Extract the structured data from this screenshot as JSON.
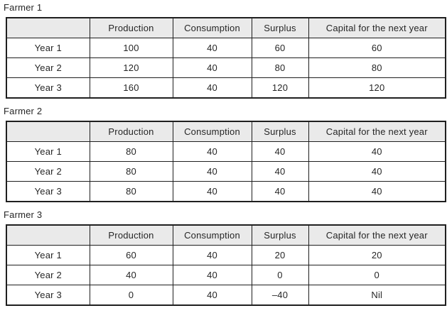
{
  "page": {
    "background": "#ffffff",
    "text_color": "#262626",
    "border_color": "#1f1f1f",
    "header_background": "#eaeaea"
  },
  "tables": [
    {
      "label": "Farmer 1",
      "columns": [
        "",
        "Production",
        "Consumption",
        "Surplus",
        "Capital for the next year"
      ],
      "rows": [
        [
          "Year 1",
          "100",
          "40",
          "60",
          "60"
        ],
        [
          "Year 2",
          "120",
          "40",
          "80",
          "80"
        ],
        [
          "Year 3",
          "160",
          "40",
          "120",
          "120"
        ]
      ]
    },
    {
      "label": "Farmer 2",
      "columns": [
        "",
        "Production",
        "Consumption",
        "Surplus",
        "Capital for the next year"
      ],
      "rows": [
        [
          "Year 1",
          "80",
          "40",
          "40",
          "40"
        ],
        [
          "Year 2",
          "80",
          "40",
          "40",
          "40"
        ],
        [
          "Year 3",
          "80",
          "40",
          "40",
          "40"
        ]
      ]
    },
    {
      "label": "Farmer 3",
      "columns": [
        "",
        "Production",
        "Consumption",
        "Surplus",
        "Capital for the next year"
      ],
      "rows": [
        [
          "Year 1",
          "60",
          "40",
          "20",
          "20"
        ],
        [
          "Year 2",
          "40",
          "40",
          "0",
          "0"
        ],
        [
          "Year 3",
          "0",
          "40",
          "–40",
          "Nil"
        ]
      ]
    }
  ]
}
